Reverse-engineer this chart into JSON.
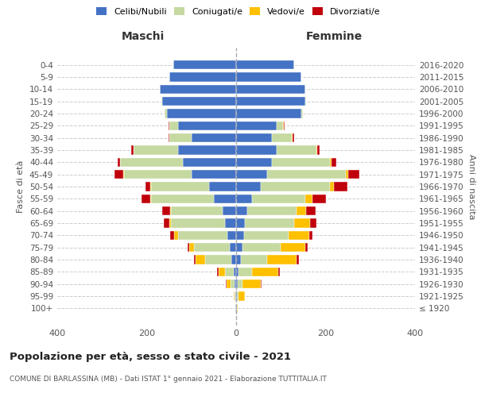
{
  "age_groups": [
    "100+",
    "95-99",
    "90-94",
    "85-89",
    "80-84",
    "75-79",
    "70-74",
    "65-69",
    "60-64",
    "55-59",
    "50-54",
    "45-49",
    "40-44",
    "35-39",
    "30-34",
    "25-29",
    "20-24",
    "15-19",
    "10-14",
    "5-9",
    "0-4"
  ],
  "birth_years": [
    "≤ 1920",
    "1921-1925",
    "1926-1930",
    "1931-1935",
    "1936-1940",
    "1941-1945",
    "1946-1950",
    "1951-1955",
    "1956-1960",
    "1961-1965",
    "1966-1970",
    "1971-1975",
    "1976-1980",
    "1981-1985",
    "1986-1990",
    "1991-1995",
    "1996-2000",
    "2001-2005",
    "2006-2010",
    "2011-2015",
    "2016-2020"
  ],
  "maschi": {
    "celibi": [
      2,
      2,
      3,
      5,
      10,
      15,
      20,
      25,
      30,
      50,
      60,
      100,
      120,
      130,
      100,
      130,
      155,
      165,
      170,
      150,
      140
    ],
    "coniugati": [
      0,
      2,
      10,
      20,
      60,
      80,
      110,
      120,
      115,
      140,
      130,
      150,
      140,
      100,
      50,
      20,
      5,
      2,
      0,
      0,
      0
    ],
    "vedovi": [
      0,
      2,
      8,
      15,
      20,
      10,
      8,
      5,
      3,
      2,
      2,
      2,
      0,
      0,
      0,
      0,
      0,
      0,
      0,
      0,
      0
    ],
    "divorziati": [
      0,
      0,
      2,
      2,
      5,
      3,
      10,
      12,
      18,
      20,
      10,
      20,
      5,
      5,
      2,
      2,
      0,
      0,
      0,
      0,
      0
    ]
  },
  "femmine": {
    "nubili": [
      2,
      2,
      3,
      5,
      10,
      15,
      18,
      20,
      25,
      35,
      55,
      70,
      80,
      90,
      80,
      90,
      145,
      155,
      155,
      145,
      130
    ],
    "coniugate": [
      0,
      3,
      12,
      30,
      60,
      85,
      100,
      110,
      110,
      120,
      155,
      175,
      130,
      90,
      45,
      15,
      5,
      2,
      0,
      0,
      0
    ],
    "vedove": [
      2,
      15,
      40,
      60,
      65,
      55,
      45,
      35,
      22,
      15,
      8,
      5,
      4,
      2,
      2,
      2,
      0,
      0,
      0,
      0,
      0
    ],
    "divorziate": [
      0,
      0,
      2,
      2,
      5,
      5,
      8,
      15,
      20,
      30,
      30,
      25,
      10,
      5,
      2,
      2,
      0,
      0,
      0,
      0,
      0
    ]
  },
  "colors": {
    "celibi": "#4472c4",
    "coniugati": "#c5d9a0",
    "vedovi": "#ffc000",
    "divorziati": "#c0000b"
  },
  "xlim": 400,
  "title": "Popolazione per età, sesso e stato civile - 2021",
  "subtitle": "COMUNE DI BARLASSINA (MB) - Dati ISTAT 1° gennaio 2021 - Elaborazione TUTTITALIA.IT",
  "ylabel": "Fasce di età",
  "ylabel_right": "Anni di nascita",
  "xlabel_maschi": "Maschi",
  "xlabel_femmine": "Femmine",
  "legend_labels": [
    "Celibi/Nubili",
    "Coniugati/e",
    "Vedovi/e",
    "Divorziati/e"
  ]
}
